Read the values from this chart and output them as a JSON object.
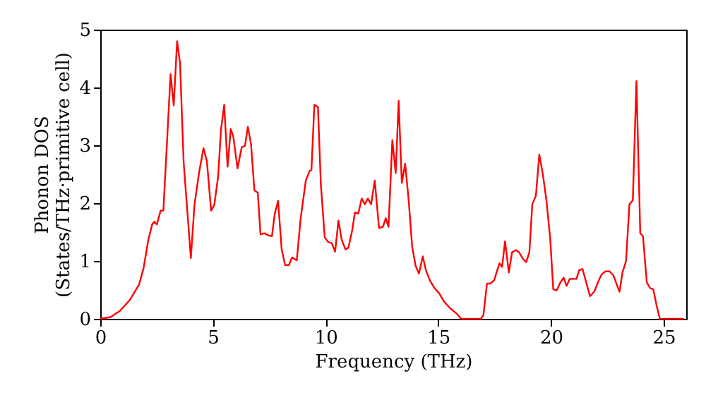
{
  "chart_data": {
    "type": "line",
    "xlabel": "Frequency (THz)",
    "ylabel": "Phonon DOS\n(States/THz·primitive cell)",
    "xlim": [
      0,
      26
    ],
    "xticks": [
      0,
      5,
      10,
      15,
      20,
      25
    ],
    "ylim": [
      0,
      5
    ],
    "yticks": [
      0,
      1,
      2,
      3,
      4,
      5
    ],
    "grid": false,
    "marker": "none",
    "line_style": "solid",
    "x": [
      0,
      0.46,
      0.88,
      1.3,
      1.72,
      1.92,
      2.13,
      2.3,
      2.4,
      2.51,
      2.68,
      2.8,
      2.97,
      3.12,
      3.26,
      3.41,
      3.54,
      3.7,
      4.02,
      4.18,
      4.39,
      4.58,
      4.73,
      4.92,
      5.06,
      5.23,
      5.36,
      5.5,
      5.65,
      5.79,
      5.9,
      6.09,
      6.28,
      6.42,
      6.55,
      6.69,
      6.84,
      6.99,
      7.11,
      7.28,
      7.47,
      7.62,
      7.74,
      7.89,
      8.05,
      8.2,
      8.37,
      8.51,
      8.72,
      8.89,
      9.12,
      9.29,
      9.37,
      9.5,
      9.66,
      9.79,
      9.96,
      10.1,
      10.27,
      10.42,
      10.57,
      10.71,
      10.88,
      11.01,
      11.18,
      11.3,
      11.45,
      11.6,
      11.74,
      11.87,
      12.02,
      12.18,
      12.37,
      12.54,
      12.67,
      12.79,
      12.96,
      13.11,
      13.24,
      13.38,
      13.53,
      13.68,
      13.84,
      13.99,
      14.14,
      14.31,
      14.45,
      14.62,
      14.83,
      15.04,
      15.25,
      15.53,
      15.84,
      16.01,
      16.89,
      17.0,
      17.16,
      17.31,
      17.48,
      17.71,
      17.83,
      17.96,
      18.13,
      18.27,
      18.44,
      18.58,
      18.75,
      18.9,
      19.04,
      19.17,
      19.33,
      19.48,
      19.63,
      19.79,
      19.96,
      20.1,
      20.25,
      20.42,
      20.56,
      20.69,
      20.83,
      20.98,
      21.13,
      21.25,
      21.4,
      21.54,
      21.73,
      21.92,
      22.08,
      22.25,
      22.42,
      22.6,
      22.77,
      22.92,
      23.04,
      23.17,
      23.33,
      23.48,
      23.63,
      23.79,
      23.96,
      24.08,
      24.25,
      24.4,
      24.54,
      24.69,
      24.83,
      25.9
    ],
    "series": [
      {
        "color": "#ff0000",
        "values": [
          0,
          0.03,
          0.14,
          0.32,
          0.59,
          0.87,
          1.36,
          1.63,
          1.68,
          1.63,
          1.87,
          1.87,
          3.12,
          4.23,
          3.69,
          4.8,
          4.42,
          2.71,
          1.05,
          1.97,
          2.54,
          2.95,
          2.73,
          1.87,
          1.97,
          2.46,
          3.28,
          3.7,
          2.63,
          3.28,
          3.16,
          2.6,
          2.97,
          2.99,
          3.32,
          3.02,
          2.22,
          2.18,
          1.46,
          1.48,
          1.44,
          1.43,
          1.81,
          2.04,
          1.2,
          0.93,
          0.93,
          1.06,
          1.01,
          1.73,
          2.39,
          2.56,
          2.57,
          3.7,
          3.66,
          2.31,
          1.41,
          1.33,
          1.31,
          1.16,
          1.7,
          1.37,
          1.2,
          1.23,
          1.53,
          1.84,
          1.82,
          2.08,
          1.98,
          2.08,
          1.98,
          2.39,
          1.57,
          1.59,
          1.74,
          1.59,
          3.09,
          2.52,
          3.77,
          2.35,
          2.68,
          2.07,
          1.25,
          0.92,
          0.78,
          1.08,
          0.84,
          0.67,
          0.53,
          0.44,
          0.3,
          0.18,
          0.08,
          0,
          0,
          0.06,
          0.61,
          0.61,
          0.67,
          0.96,
          0.9,
          1.34,
          0.8,
          1.15,
          1.19,
          1.15,
          1.04,
          0.98,
          1.15,
          1.98,
          2.13,
          2.84,
          2.52,
          2.07,
          1.41,
          0.51,
          0.49,
          0.63,
          0.71,
          0.57,
          0.69,
          0.69,
          0.69,
          0.84,
          0.86,
          0.66,
          0.39,
          0.47,
          0.63,
          0.77,
          0.82,
          0.82,
          0.75,
          0.59,
          0.47,
          0.8,
          1.0,
          1.98,
          2.05,
          4.11,
          1.48,
          1.43,
          0.63,
          0.53,
          0.51,
          0.22,
          0,
          0
        ]
      }
    ]
  }
}
